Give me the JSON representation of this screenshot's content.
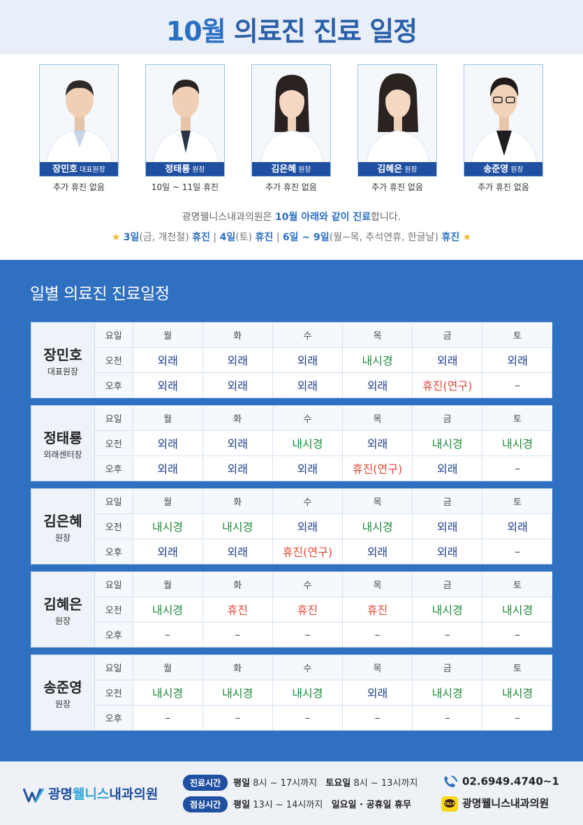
{
  "header": {
    "title_num": "10월",
    "title_rest": " 의료진 진료 일정"
  },
  "doctors": [
    {
      "name": "장민호",
      "title": "대표원장",
      "note": "추가 휴진 없음"
    },
    {
      "name": "정태룡",
      "title": "원장",
      "note": "10일 ~ 11일 휴진"
    },
    {
      "name": "김은혜",
      "title": "원장",
      "note": "추가 휴진 없음"
    },
    {
      "name": "김혜은",
      "title": "원장",
      "note": "추가 휴진 없음"
    },
    {
      "name": "송준영",
      "title": "원장",
      "note": "추가 휴진 없음"
    }
  ],
  "notice": {
    "line1_a": "광명웰니스내과의원은 ",
    "line1_hl": "10월 아래와 같이 진료",
    "line1_b": "합니다.",
    "star": "★",
    "l2_1": "3일",
    "l2_2": "(금, 개천절) ",
    "l2_3": "휴진",
    "l2_sep": " | ",
    "l2_4": "4일",
    "l2_5": "(토) ",
    "l2_6": "휴진",
    "l2_7": "6일 ~ 9일",
    "l2_8": "(월~목, 추석연휴, 한글날) ",
    "l2_9": "휴진"
  },
  "schedule_title": "일별 의료진 진료일정",
  "labels": {
    "day": "요일",
    "am": "오전",
    "pm": "오후"
  },
  "days": [
    "월",
    "화",
    "수",
    "목",
    "금",
    "토"
  ],
  "schedule": [
    {
      "name": "장민호",
      "title": "대표원장",
      "am": [
        "외래",
        "외래",
        "외래",
        "내시경",
        "외래",
        "외래"
      ],
      "pm": [
        "외래",
        "외래",
        "외래",
        "외래",
        "휴진(연구)",
        "–"
      ]
    },
    {
      "name": "정태룡",
      "title": "외래센터장",
      "am": [
        "외래",
        "외래",
        "내시경",
        "외래",
        "내시경",
        "내시경"
      ],
      "pm": [
        "외래",
        "외래",
        "외래",
        "휴진(연구)",
        "외래",
        "–"
      ]
    },
    {
      "name": "김은혜",
      "title": "원장",
      "am": [
        "내시경",
        "내시경",
        "외래",
        "내시경",
        "외래",
        "외래"
      ],
      "pm": [
        "외래",
        "외래",
        "휴진(연구)",
        "외래",
        "외래",
        "–"
      ]
    },
    {
      "name": "김혜은",
      "title": "원장",
      "am": [
        "내시경",
        "휴진",
        "휴진",
        "휴진",
        "내시경",
        "내시경"
      ],
      "pm": [
        "–",
        "–",
        "–",
        "–",
        "–",
        "–"
      ]
    },
    {
      "name": "송준영",
      "title": "원장",
      "am": [
        "내시경",
        "내시경",
        "내시경",
        "외래",
        "내시경",
        "내시경"
      ],
      "pm": [
        "–",
        "–",
        "–",
        "–",
        "–",
        "–"
      ]
    }
  ],
  "footer": {
    "logo_a": "광명",
    "logo_b": "웰니스",
    "logo_c": "내과의원",
    "hours_label": "진료시간",
    "hours_weekday_label": "평일",
    "hours_weekday": " 8시 ~ 17시까지",
    "hours_sat_label": "토요일",
    "hours_sat": " 8시 ~ 13시까지",
    "lunch_label": "점심시간",
    "lunch_weekday_label": "평일",
    "lunch_weekday": " 13시 ~ 14시까지",
    "lunch_closed": "일요일 · 공휴일 휴무",
    "phone": "02.6949.4740~1",
    "kakao": "광명웰니스내과의원",
    "kakao_badge": "TALK"
  },
  "colors": {
    "primary": "#1f4fa0",
    "section_bg": "#3070c0",
    "outpatient": "#1f3f8a",
    "endoscopy": "#1e8a3a",
    "closed": "#e04a3a"
  }
}
